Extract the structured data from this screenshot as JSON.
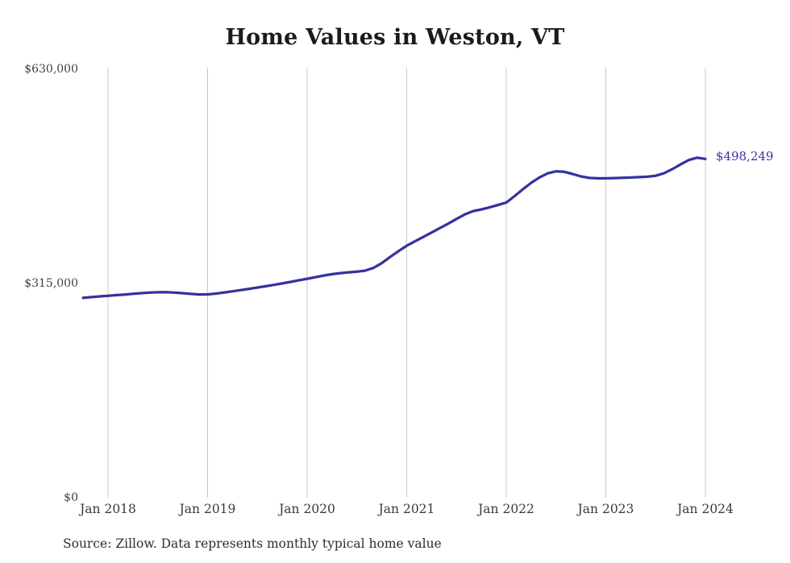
{
  "title": "Home Values in Weston, VT",
  "source_note": "Source: Zillow. Data represents monthly typical home value",
  "colors": {
    "line": "#35329f",
    "grid": "#c9c9c9",
    "axis_text": "#3a3a3a",
    "title_text": "#1b1b1b",
    "annotation_text": "#3734a3",
    "background": "#ffffff"
  },
  "chart_data": {
    "type": "line",
    "title": "Home Values in Weston, VT",
    "xlabel": "",
    "ylabel": "",
    "ylim": [
      0,
      630000
    ],
    "grid": "vertical-only",
    "legend": "none",
    "end_annotation": "$498,249",
    "y_ticks": [
      {
        "label": "$0",
        "value": 0
      },
      {
        "label": "$315,000",
        "value": 315000
      },
      {
        "label": "$630,000",
        "value": 630000
      }
    ],
    "x_ticks": [
      {
        "label": "Jan 2018",
        "month_index": 0
      },
      {
        "label": "Jan 2019",
        "month_index": 12
      },
      {
        "label": "Jan 2020",
        "month_index": 24
      },
      {
        "label": "Jan 2021",
        "month_index": 36
      },
      {
        "label": "Jan 2022",
        "month_index": 48
      },
      {
        "label": "Jan 2023",
        "month_index": 60
      },
      {
        "label": "Jan 2024",
        "month_index": 72
      }
    ],
    "series": [
      {
        "name": "Monthly typical home value (USD)",
        "start_month_index": -3,
        "values": [
          294000,
          295000,
          296000,
          297000,
          297900,
          298800,
          299800,
          300800,
          301600,
          302100,
          302200,
          301700,
          300800,
          299700,
          298900,
          299000,
          300200,
          301800,
          303500,
          305300,
          307200,
          309100,
          311000,
          313000,
          315100,
          317400,
          319700,
          322000,
          324400,
          326700,
          328700,
          330300,
          331500,
          332400,
          334000,
          338000,
          345000,
          354000,
          362500,
          370500,
          377000,
          383500,
          390000,
          396500,
          403000,
          410000,
          416500,
          421500,
          424000,
          427000,
          430500,
          434000,
          443500,
          453500,
          463000,
          471000,
          477000,
          480000,
          479200,
          476000,
          472500,
          470200,
          469600,
          469600,
          470000,
          470400,
          470900,
          471400,
          472000,
          473500,
          477000,
          483000,
          490000,
          496500,
          500000,
          498249
        ]
      }
    ]
  }
}
